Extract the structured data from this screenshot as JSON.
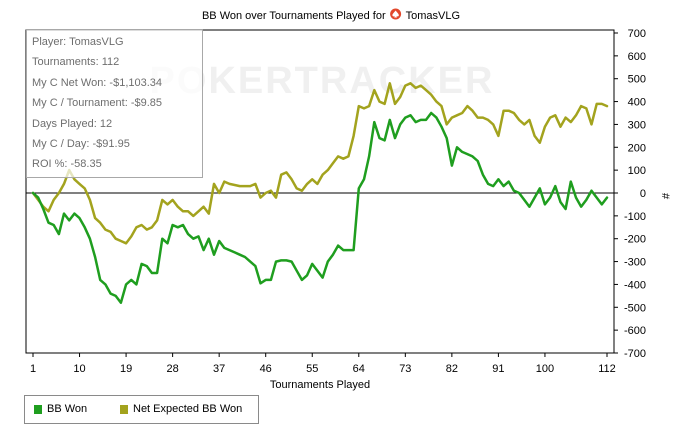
{
  "chart_data": {
    "type": "line",
    "title": "BB Won over Tournaments Played for",
    "player_name": "TomasVLG",
    "xlabel": "Tournaments Played",
    "ylabel": "#",
    "xlim": [
      1,
      112
    ],
    "ylim": [
      -700,
      700
    ],
    "x_ticks": [
      1,
      10,
      19,
      28,
      37,
      46,
      55,
      64,
      73,
      82,
      91,
      100,
      112
    ],
    "y_ticks": [
      -700,
      -600,
      -500,
      -400,
      -300,
      -200,
      -100,
      0,
      100,
      200,
      300,
      400,
      500,
      600,
      700
    ],
    "watermark": "POKERTRACKER",
    "colors": {
      "bb_won": "#1f9e1f",
      "expected": "#a3a31e",
      "zero_line": "#000000"
    },
    "series": [
      {
        "name": "BB Won",
        "color": "#1f9e1f",
        "points": [
          [
            1,
            0
          ],
          [
            2,
            -20
          ],
          [
            3,
            -70
          ],
          [
            4,
            -130
          ],
          [
            5,
            -140
          ],
          [
            6,
            -180
          ],
          [
            7,
            -90
          ],
          [
            8,
            -120
          ],
          [
            9,
            -90
          ],
          [
            10,
            -110
          ],
          [
            11,
            -150
          ],
          [
            12,
            -200
          ],
          [
            13,
            -280
          ],
          [
            14,
            -380
          ],
          [
            15,
            -400
          ],
          [
            16,
            -440
          ],
          [
            17,
            -450
          ],
          [
            18,
            -480
          ],
          [
            19,
            -400
          ],
          [
            20,
            -380
          ],
          [
            21,
            -400
          ],
          [
            22,
            -310
          ],
          [
            23,
            -320
          ],
          [
            24,
            -350
          ],
          [
            25,
            -350
          ],
          [
            26,
            -200
          ],
          [
            27,
            -220
          ],
          [
            28,
            -140
          ],
          [
            29,
            -150
          ],
          [
            30,
            -140
          ],
          [
            31,
            -180
          ],
          [
            32,
            -200
          ],
          [
            33,
            -190
          ],
          [
            34,
            -250
          ],
          [
            35,
            -200
          ],
          [
            36,
            -270
          ],
          [
            37,
            -210
          ],
          [
            38,
            -240
          ],
          [
            39,
            -250
          ],
          [
            40,
            -260
          ],
          [
            41,
            -270
          ],
          [
            42,
            -280
          ],
          [
            43,
            -300
          ],
          [
            44,
            -320
          ],
          [
            45,
            -395
          ],
          [
            46,
            -380
          ],
          [
            47,
            -380
          ],
          [
            48,
            -300
          ],
          [
            49,
            -295
          ],
          [
            50,
            -295
          ],
          [
            51,
            -300
          ],
          [
            52,
            -340
          ],
          [
            53,
            -380
          ],
          [
            54,
            -360
          ],
          [
            55,
            -310
          ],
          [
            56,
            -340
          ],
          [
            57,
            -370
          ],
          [
            58,
            -300
          ],
          [
            59,
            -270
          ],
          [
            60,
            -230
          ],
          [
            61,
            -250
          ],
          [
            62,
            -250
          ],
          [
            63,
            -250
          ],
          [
            64,
            20
          ],
          [
            65,
            60
          ],
          [
            66,
            160
          ],
          [
            67,
            310
          ],
          [
            68,
            240
          ],
          [
            69,
            230
          ],
          [
            70,
            320
          ],
          [
            71,
            240
          ],
          [
            72,
            300
          ],
          [
            73,
            330
          ],
          [
            74,
            340
          ],
          [
            75,
            310
          ],
          [
            76,
            320
          ],
          [
            77,
            320
          ],
          [
            78,
            350
          ],
          [
            79,
            330
          ],
          [
            80,
            290
          ],
          [
            81,
            240
          ],
          [
            82,
            120
          ],
          [
            83,
            200
          ],
          [
            84,
            180
          ],
          [
            85,
            170
          ],
          [
            86,
            160
          ],
          [
            87,
            140
          ],
          [
            88,
            80
          ],
          [
            89,
            40
          ],
          [
            90,
            30
          ],
          [
            91,
            60
          ],
          [
            92,
            30
          ],
          [
            93,
            50
          ],
          [
            94,
            10
          ],
          [
            95,
            0
          ],
          [
            96,
            -30
          ],
          [
            97,
            -60
          ],
          [
            98,
            -20
          ],
          [
            99,
            20
          ],
          [
            100,
            -50
          ],
          [
            101,
            -20
          ],
          [
            102,
            30
          ],
          [
            103,
            -40
          ],
          [
            104,
            -70
          ],
          [
            105,
            50
          ],
          [
            106,
            -20
          ],
          [
            107,
            -60
          ],
          [
            108,
            -30
          ],
          [
            109,
            10
          ],
          [
            110,
            -20
          ],
          [
            111,
            -50
          ],
          [
            112,
            -20
          ]
        ]
      },
      {
        "name": "Net Expected BB Won",
        "color": "#a3a31e",
        "points": [
          [
            1,
            0
          ],
          [
            2,
            -30
          ],
          [
            3,
            -60
          ],
          [
            4,
            -80
          ],
          [
            5,
            -30
          ],
          [
            6,
            0
          ],
          [
            7,
            40
          ],
          [
            8,
            100
          ],
          [
            9,
            60
          ],
          [
            10,
            40
          ],
          [
            11,
            20
          ],
          [
            12,
            -30
          ],
          [
            13,
            -110
          ],
          [
            14,
            -130
          ],
          [
            15,
            -160
          ],
          [
            16,
            -170
          ],
          [
            17,
            -200
          ],
          [
            18,
            -210
          ],
          [
            19,
            -220
          ],
          [
            20,
            -190
          ],
          [
            21,
            -150
          ],
          [
            22,
            -140
          ],
          [
            23,
            -160
          ],
          [
            24,
            -150
          ],
          [
            25,
            -120
          ],
          [
            26,
            -30
          ],
          [
            27,
            -50
          ],
          [
            28,
            -30
          ],
          [
            29,
            -60
          ],
          [
            30,
            -80
          ],
          [
            31,
            -80
          ],
          [
            32,
            -100
          ],
          [
            33,
            -80
          ],
          [
            34,
            -60
          ],
          [
            35,
            -90
          ],
          [
            36,
            40
          ],
          [
            37,
            0
          ],
          [
            38,
            50
          ],
          [
            39,
            40
          ],
          [
            40,
            35
          ],
          [
            41,
            30
          ],
          [
            42,
            30
          ],
          [
            43,
            30
          ],
          [
            44,
            40
          ],
          [
            45,
            -20
          ],
          [
            46,
            0
          ],
          [
            47,
            10
          ],
          [
            48,
            -20
          ],
          [
            49,
            80
          ],
          [
            50,
            90
          ],
          [
            51,
            60
          ],
          [
            52,
            20
          ],
          [
            53,
            10
          ],
          [
            54,
            40
          ],
          [
            55,
            60
          ],
          [
            56,
            40
          ],
          [
            57,
            80
          ],
          [
            58,
            100
          ],
          [
            59,
            130
          ],
          [
            60,
            160
          ],
          [
            61,
            150
          ],
          [
            62,
            160
          ],
          [
            63,
            250
          ],
          [
            64,
            380
          ],
          [
            65,
            370
          ],
          [
            66,
            380
          ],
          [
            67,
            450
          ],
          [
            68,
            400
          ],
          [
            69,
            390
          ],
          [
            70,
            480
          ],
          [
            71,
            390
          ],
          [
            72,
            420
          ],
          [
            73,
            470
          ],
          [
            74,
            480
          ],
          [
            75,
            460
          ],
          [
            76,
            470
          ],
          [
            77,
            450
          ],
          [
            78,
            430
          ],
          [
            79,
            400
          ],
          [
            80,
            380
          ],
          [
            81,
            300
          ],
          [
            82,
            330
          ],
          [
            83,
            340
          ],
          [
            84,
            350
          ],
          [
            85,
            380
          ],
          [
            86,
            360
          ],
          [
            87,
            330
          ],
          [
            88,
            330
          ],
          [
            89,
            320
          ],
          [
            90,
            300
          ],
          [
            91,
            250
          ],
          [
            92,
            360
          ],
          [
            93,
            360
          ],
          [
            94,
            350
          ],
          [
            95,
            320
          ],
          [
            96,
            300
          ],
          [
            97,
            320
          ],
          [
            98,
            250
          ],
          [
            99,
            220
          ],
          [
            100,
            290
          ],
          [
            101,
            330
          ],
          [
            102,
            340
          ],
          [
            103,
            290
          ],
          [
            104,
            330
          ],
          [
            105,
            310
          ],
          [
            106,
            340
          ],
          [
            107,
            380
          ],
          [
            108,
            370
          ],
          [
            109,
            300
          ],
          [
            110,
            390
          ],
          [
            111,
            390
          ],
          [
            112,
            380
          ]
        ]
      }
    ],
    "legend": {
      "placement": "bottom-left",
      "entries": [
        "BB Won",
        "Net Expected BB Won"
      ]
    }
  },
  "stats": [
    "Player: TomasVLG",
    "Tournaments: 112",
    "My C Net Won: -$1,103.34",
    "My C / Tournament: -$9.85",
    "Days Played: 12",
    "My C / Day: -$91.95",
    "ROI %: -58.35"
  ]
}
